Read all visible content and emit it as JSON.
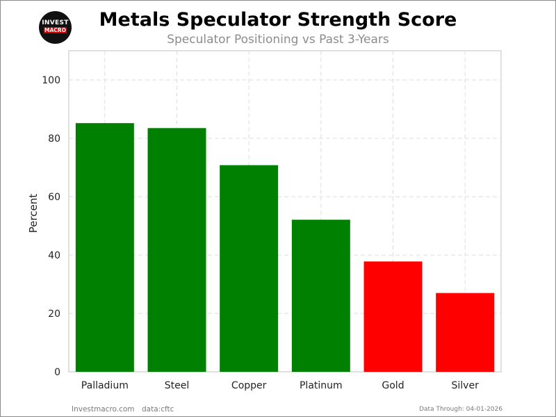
{
  "header": {
    "logo_top": "INVEST",
    "logo_bottom": "MACRO",
    "title": "Metals Speculator Strength Score",
    "subtitle": "Speculator Positioning vs Past 3-Years"
  },
  "footer": {
    "site": "Investmacro.com",
    "source": "data:cftc",
    "through": "Data Through: 04-01-2026"
  },
  "colors": {
    "positive": "#008000",
    "negative": "#ff0000",
    "grid": "#dddddd",
    "axis": "#cccccc"
  },
  "chart_data": {
    "type": "bar",
    "title": "Metals Speculator Strength Score",
    "subtitle": "Speculator Positioning vs Past 3-Years",
    "xlabel": "",
    "ylabel": "Percent",
    "categories": [
      "Palladium",
      "Steel",
      "Copper",
      "Platinum",
      "Gold",
      "Silver"
    ],
    "values": [
      85.2,
      83.5,
      70.8,
      52.1,
      37.8,
      27.0
    ],
    "bar_colors": [
      "#008000",
      "#008000",
      "#008000",
      "#008000",
      "#ff0000",
      "#ff0000"
    ],
    "ylim": [
      0,
      110
    ],
    "yticks": [
      0,
      20,
      40,
      60,
      80,
      100
    ],
    "grid": true
  }
}
